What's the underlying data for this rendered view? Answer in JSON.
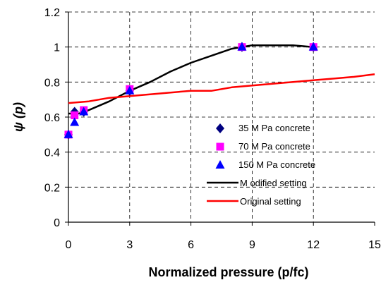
{
  "chart_data": {
    "type": "scatter",
    "xlabel": "Normalized pressure (p/fc)",
    "ylabel": "ψ (p)",
    "xlim": [
      0,
      15
    ],
    "ylim": [
      0,
      1.2
    ],
    "x_ticks": [
      "0",
      "3",
      "6",
      "9",
      "12",
      "15"
    ],
    "y_ticks": [
      "0",
      "0.2",
      "0.4",
      "0.6",
      "0.8",
      "1",
      "1.2"
    ],
    "grid": "dashed",
    "legend_position": "bottom-right",
    "series": [
      {
        "name": "35 M Pa concrete",
        "kind": "marker",
        "marker": "diamond",
        "color": "#000080",
        "points": [
          [
            0,
            0.5
          ],
          [
            0.3,
            0.63
          ],
          [
            0.75,
            0.63
          ],
          [
            3,
            0.75
          ],
          [
            8.5,
            1.0
          ],
          [
            12,
            1.0
          ]
        ]
      },
      {
        "name": "70 M Pa concrete",
        "kind": "marker",
        "marker": "square",
        "color": "#ff00ff",
        "points": [
          [
            0,
            0.5
          ],
          [
            0.3,
            0.61
          ],
          [
            0.75,
            0.64
          ],
          [
            3,
            0.76
          ],
          [
            8.5,
            1.0
          ],
          [
            12,
            1.0
          ]
        ]
      },
      {
        "name": "150 M Pa concrete",
        "kind": "marker",
        "marker": "triangle",
        "color": "#0000ff",
        "points": [
          [
            0,
            0.5
          ],
          [
            0.3,
            0.57
          ],
          [
            0.75,
            0.63
          ],
          [
            3,
            0.75
          ],
          [
            8.5,
            1.0
          ],
          [
            12,
            1.0
          ]
        ]
      },
      {
        "name": "M odified setting",
        "kind": "line",
        "color": "#000000",
        "points": [
          [
            0,
            0.62
          ],
          [
            0.5,
            0.62
          ],
          [
            1,
            0.64
          ],
          [
            2,
            0.69
          ],
          [
            3,
            0.75
          ],
          [
            4,
            0.8
          ],
          [
            5,
            0.86
          ],
          [
            6,
            0.91
          ],
          [
            7,
            0.95
          ],
          [
            8,
            0.99
          ],
          [
            9,
            1.01
          ],
          [
            10,
            1.01
          ],
          [
            11,
            1.01
          ],
          [
            12,
            1.0
          ]
        ]
      },
      {
        "name": "Original setting",
        "kind": "line",
        "color": "#ff0000",
        "points": [
          [
            0,
            0.68
          ],
          [
            1,
            0.69
          ],
          [
            2,
            0.71
          ],
          [
            3,
            0.72
          ],
          [
            4,
            0.73
          ],
          [
            5,
            0.74
          ],
          [
            6,
            0.75
          ],
          [
            7,
            0.75
          ],
          [
            8,
            0.77
          ],
          [
            9,
            0.78
          ],
          [
            10,
            0.79
          ],
          [
            11,
            0.8
          ],
          [
            12,
            0.81
          ],
          [
            13,
            0.82
          ],
          [
            14,
            0.83
          ],
          [
            15,
            0.845
          ]
        ]
      }
    ]
  }
}
